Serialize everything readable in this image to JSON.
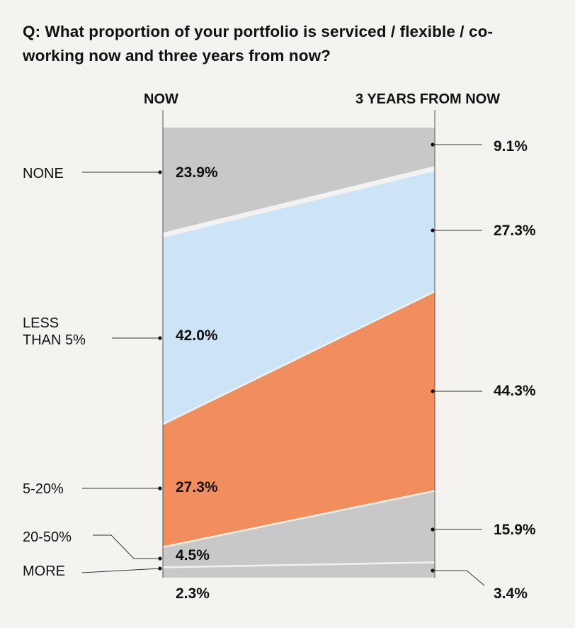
{
  "chart_data": {
    "type": "area",
    "title": "Q: What proportion of your portfolio is serviced / flexible / co-working now and three years from now?",
    "x": [
      "NOW",
      "3 YEARS FROM NOW"
    ],
    "stack_order": "top-to-bottom",
    "series": [
      {
        "name_lines": [
          "NONE"
        ],
        "values": [
          23.9,
          9.1
        ],
        "labels": [
          "23.9%",
          "9.1%"
        ],
        "color": "#c8c8c9"
      },
      {
        "name_lines": [
          "LESS",
          "THAN 5%"
        ],
        "values": [
          42.0,
          27.3
        ],
        "labels": [
          "42.0%",
          "27.3%"
        ],
        "color": "#cde4f6"
      },
      {
        "name_lines": [
          "5-20%"
        ],
        "values": [
          27.3,
          44.3
        ],
        "labels": [
          "27.3%",
          "44.3%"
        ],
        "color": "#f28e5e"
      },
      {
        "name_lines": [
          "20-50%"
        ],
        "values": [
          4.5,
          15.9
        ],
        "labels": [
          "4.5%",
          "15.9%"
        ],
        "color": "#c8c8c9"
      },
      {
        "name_lines": [
          "MORE"
        ],
        "values": [
          2.3,
          3.4
        ],
        "labels": [
          "2.3%",
          "3.4%"
        ],
        "color": "#c8c8c9"
      }
    ],
    "colors": {
      "background": "#f4f3f0",
      "band_separator": "#f2f2f2",
      "leader_line": "#333333"
    }
  }
}
